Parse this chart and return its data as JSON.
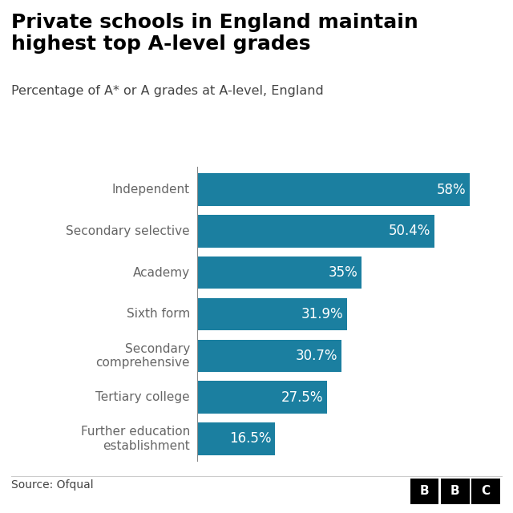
{
  "title": "Private schools in England maintain\nhighest top A-level grades",
  "subtitle": "Percentage of A* or A grades at A-level, England",
  "source": "Source: Ofqual",
  "categories": [
    "Independent",
    "Secondary selective",
    "Academy",
    "Sixth form",
    "Secondary\ncomprehensive",
    "Tertiary college",
    "Further education\nestablishment"
  ],
  "values": [
    58.0,
    50.4,
    35.0,
    31.9,
    30.7,
    27.5,
    16.5
  ],
  "labels": [
    "58%",
    "50.4%",
    "35%",
    "31.9%",
    "30.7%",
    "27.5%",
    "16.5%"
  ],
  "bar_color": "#1b7fa0",
  "text_color": "#ffffff",
  "title_color": "#000000",
  "subtitle_color": "#444444",
  "ytick_color": "#666666",
  "source_color": "#444444",
  "background_color": "#ffffff",
  "divider_color": "#cccccc",
  "xlim": [
    0,
    65
  ],
  "bar_height": 0.78,
  "title_fontsize": 18,
  "subtitle_fontsize": 11.5,
  "label_fontsize": 12,
  "ytick_fontsize": 11,
  "source_fontsize": 10
}
